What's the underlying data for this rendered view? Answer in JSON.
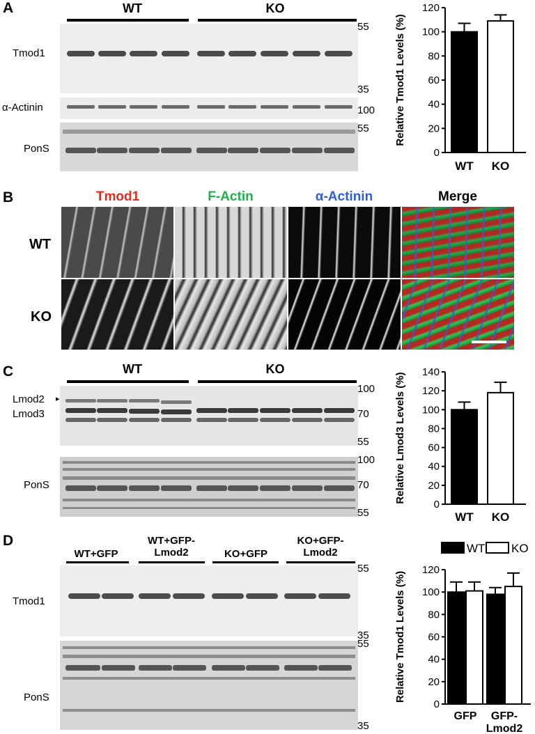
{
  "panels": {
    "A": {
      "letter": "A",
      "groups": [
        "WT",
        "KO"
      ],
      "band_labels": [
        "Tmod1",
        "α-Actinin",
        "PonS"
      ],
      "mw": [
        "55",
        "35",
        "100",
        "55"
      ]
    },
    "B": {
      "letter": "B",
      "columns": [
        {
          "label": "Tmod1",
          "color": "#e8291c"
        },
        {
          "label": "F-Actin",
          "color": "#1fb04a"
        },
        {
          "label": "α-Actinin",
          "color": "#2e5fd8"
        },
        {
          "label": "Merge",
          "color": "#000000"
        }
      ],
      "rows": [
        "WT",
        "KO"
      ]
    },
    "C": {
      "letter": "C",
      "groups": [
        "WT",
        "KO"
      ],
      "band_labels": [
        "Lmod2",
        "Lmod3",
        "PonS"
      ],
      "arrow": "▸",
      "mw": [
        "100",
        "70",
        "55",
        "100",
        "70",
        "55"
      ]
    },
    "D": {
      "letter": "D",
      "conditions": [
        "WT+GFP",
        "WT+GFP-\nLmod2",
        "KO+GFP",
        "KO+GFP-\nLmod2"
      ],
      "band_labels": [
        "Tmod1",
        "PonS"
      ],
      "mw": [
        "55",
        "35",
        "55",
        "35"
      ]
    }
  },
  "chart_data": [
    {
      "type": "bar",
      "panel": "A",
      "categories": [
        "WT",
        "KO"
      ],
      "values": [
        100,
        109
      ],
      "errors": [
        7,
        5
      ],
      "fills": [
        "#000000",
        "#ffffff"
      ],
      "ylabel": "Relative Tmod1 Levels (%)",
      "ylim": [
        0,
        120
      ],
      "yticks": [
        0,
        20,
        40,
        60,
        80,
        100,
        120
      ]
    },
    {
      "type": "bar",
      "panel": "C",
      "categories": [
        "WT",
        "KO"
      ],
      "values": [
        100,
        118
      ],
      "errors": [
        8,
        11
      ],
      "fills": [
        "#000000",
        "#ffffff"
      ],
      "ylabel": "Relative Lmod3 Levels (%)",
      "ylim": [
        0,
        140
      ],
      "yticks": [
        0,
        20,
        40,
        60,
        80,
        100,
        120,
        140
      ]
    },
    {
      "type": "bar",
      "panel": "D",
      "categories": [
        "GFP",
        "GFP-\nLmod2"
      ],
      "series": [
        {
          "name": "WT",
          "values": [
            100,
            98
          ],
          "errors": [
            9,
            6
          ],
          "fill": "#000000"
        },
        {
          "name": "KO",
          "values": [
            101,
            105
          ],
          "errors": [
            8,
            12
          ],
          "fill": "#ffffff"
        }
      ],
      "ylabel": "Relative Tmod1 Levels (%)",
      "ylim": [
        0,
        120
      ],
      "yticks": [
        0,
        20,
        40,
        60,
        80,
        100,
        120
      ],
      "legend": "top"
    }
  ]
}
